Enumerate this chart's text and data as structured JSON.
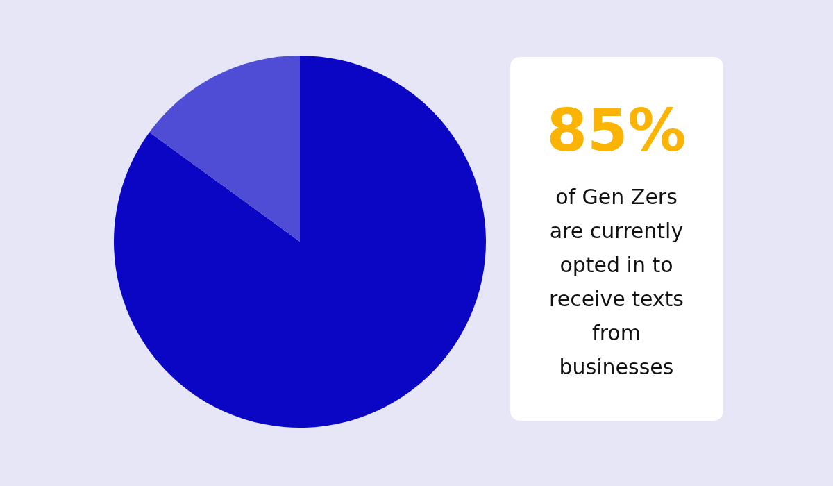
{
  "chart_data": {
    "type": "pie",
    "categories": [
      null,
      null
    ],
    "values": [
      85,
      15
    ],
    "colors": [
      "#0a06c4",
      "#4f4cd6"
    ],
    "annotations": [
      "85%",
      "of Gen Zers are currently opted in to receive texts from businesses"
    ]
  }
}
